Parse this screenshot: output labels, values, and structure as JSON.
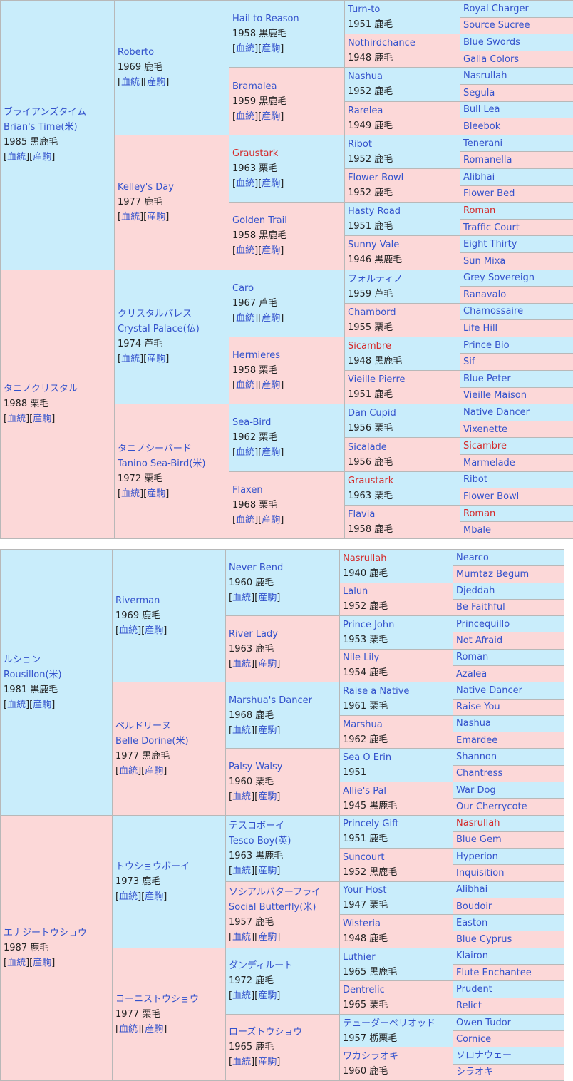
{
  "labels": {
    "open": "[",
    "close": "]",
    "pedigree": "血統",
    "offspring": "産駒"
  },
  "tables": [
    {
      "gen1": [
        {
          "name": "ブライアンズタイム",
          "name2": "Brian's Time(米)",
          "info": "1985 黒鹿毛"
        },
        {
          "name": "タニノクリスタル",
          "info": "1988 栗毛"
        }
      ],
      "gen2": [
        {
          "name": "Roberto",
          "info": "1969 鹿毛"
        },
        {
          "name": "Kelley's Day",
          "info": "1977 鹿毛"
        },
        {
          "name": "クリスタルパレス",
          "name2": "Crystal Palace(仏)",
          "info": "1974 芦毛"
        },
        {
          "name": "タニノシーバード",
          "name2": "Tanino Sea-Bird(米)",
          "info": "1972 栗毛"
        }
      ],
      "gen3": [
        {
          "name": "Hail to Reason",
          "info": "1958 黒鹿毛"
        },
        {
          "name": "Bramalea",
          "info": "1959 黒鹿毛"
        },
        {
          "name": "Graustark",
          "info": "1963 栗毛",
          "red": true
        },
        {
          "name": "Golden Trail",
          "info": "1958 黒鹿毛"
        },
        {
          "name": "Caro",
          "info": "1967 芦毛"
        },
        {
          "name": "Hermieres",
          "info": "1958 栗毛"
        },
        {
          "name": "Sea-Bird",
          "info": "1962 栗毛"
        },
        {
          "name": "Flaxen",
          "info": "1968 栗毛"
        }
      ],
      "gen4": [
        {
          "name": "Turn-to",
          "info": "1951 鹿毛"
        },
        {
          "name": "Nothirdchance",
          "info": "1948 鹿毛"
        },
        {
          "name": "Nashua",
          "info": "1952 鹿毛"
        },
        {
          "name": "Rarelea",
          "info": "1949 鹿毛"
        },
        {
          "name": "Ribot",
          "info": "1952 鹿毛"
        },
        {
          "name": "Flower Bowl",
          "info": "1952 鹿毛"
        },
        {
          "name": "Hasty Road",
          "info": "1951 鹿毛"
        },
        {
          "name": "Sunny Vale",
          "info": "1946 黒鹿毛"
        },
        {
          "name": "フォルティノ",
          "info": "1959 芦毛"
        },
        {
          "name": "Chambord",
          "info": "1955 栗毛"
        },
        {
          "name": "Sicambre",
          "info": "1948 黒鹿毛",
          "red": true
        },
        {
          "name": "Vieille Pierre",
          "info": "1951 鹿毛"
        },
        {
          "name": "Dan Cupid",
          "info": "1956 栗毛"
        },
        {
          "name": "Sicalade",
          "info": "1956 鹿毛"
        },
        {
          "name": "Graustark",
          "info": "1963 栗毛",
          "red": true
        },
        {
          "name": "Flavia",
          "info": "1958 鹿毛"
        }
      ],
      "gen5": [
        {
          "name": "Royal Charger"
        },
        {
          "name": "Source Sucree"
        },
        {
          "name": "Blue Swords"
        },
        {
          "name": "Galla Colors"
        },
        {
          "name": "Nasrullah"
        },
        {
          "name": "Segula"
        },
        {
          "name": "Bull Lea"
        },
        {
          "name": "Bleebok"
        },
        {
          "name": "Tenerani"
        },
        {
          "name": "Romanella"
        },
        {
          "name": "Alibhai"
        },
        {
          "name": "Flower Bed"
        },
        {
          "name": "Roman",
          "red": true
        },
        {
          "name": "Traffic Court"
        },
        {
          "name": "Eight Thirty"
        },
        {
          "name": "Sun Mixa"
        },
        {
          "name": "Grey Sovereign"
        },
        {
          "name": "Ranavalo"
        },
        {
          "name": "Chamossaire"
        },
        {
          "name": "Life Hill"
        },
        {
          "name": "Prince Bio"
        },
        {
          "name": "Sif"
        },
        {
          "name": "Blue Peter"
        },
        {
          "name": "Vieille Maison"
        },
        {
          "name": "Native Dancer"
        },
        {
          "name": "Vixenette"
        },
        {
          "name": "Sicambre",
          "red": true
        },
        {
          "name": "Marmelade"
        },
        {
          "name": "Ribot"
        },
        {
          "name": "Flower Bowl"
        },
        {
          "name": "Roman",
          "red": true
        },
        {
          "name": "Mbale"
        }
      ]
    },
    {
      "gen1": [
        {
          "name": "ルション",
          "name2": "Rousillon(米)",
          "info": "1981 黒鹿毛"
        },
        {
          "name": "エナジートウショウ",
          "info": "1987 鹿毛"
        }
      ],
      "gen2": [
        {
          "name": "Riverman",
          "info": "1969 鹿毛"
        },
        {
          "name": "ベルドリーヌ",
          "name2": "Belle Dorine(米)",
          "info": "1977 黒鹿毛"
        },
        {
          "name": "トウショウボーイ",
          "info": "1973 鹿毛"
        },
        {
          "name": "コーニストウショウ",
          "info": "1977 栗毛"
        }
      ],
      "gen3": [
        {
          "name": "Never Bend",
          "info": "1960 鹿毛"
        },
        {
          "name": "River Lady",
          "info": "1963 鹿毛"
        },
        {
          "name": "Marshua's Dancer",
          "info": "1968 鹿毛"
        },
        {
          "name": "Palsy Walsy",
          "info": "1960 栗毛"
        },
        {
          "name": "テスコボーイ",
          "name2": "Tesco Boy(英)",
          "info": "1963 黒鹿毛"
        },
        {
          "name": "ソシアルバターフライ",
          "name2": "Social Butterfly(米)",
          "info": "1957 鹿毛"
        },
        {
          "name": "ダンディルート",
          "info": "1972 鹿毛"
        },
        {
          "name": "ローズトウショウ",
          "info": "1965 鹿毛"
        }
      ],
      "gen4": [
        {
          "name": "Nasrullah",
          "info": "1940 鹿毛",
          "red": true
        },
        {
          "name": "Lalun",
          "info": "1952 鹿毛"
        },
        {
          "name": "Prince John",
          "info": "1953 栗毛"
        },
        {
          "name": "Nile Lily",
          "info": "1954 鹿毛"
        },
        {
          "name": "Raise a Native",
          "info": "1961 栗毛"
        },
        {
          "name": "Marshua",
          "info": "1962 鹿毛"
        },
        {
          "name": "Sea O Erin",
          "info": "1951"
        },
        {
          "name": "Allie's Pal",
          "info": "1945 黒鹿毛"
        },
        {
          "name": "Princely Gift",
          "info": "1951 鹿毛"
        },
        {
          "name": "Suncourt",
          "info": "1952 黒鹿毛"
        },
        {
          "name": "Your Host",
          "info": "1947 栗毛"
        },
        {
          "name": "Wisteria",
          "info": "1948 鹿毛"
        },
        {
          "name": "Luthier",
          "info": "1965 黒鹿毛"
        },
        {
          "name": "Dentrelic",
          "info": "1965 栗毛"
        },
        {
          "name": "テューダーペリオッド",
          "info": "1957 栃栗毛"
        },
        {
          "name": "ワカシラオキ",
          "info": "1960 鹿毛"
        }
      ],
      "gen5": [
        {
          "name": "Nearco"
        },
        {
          "name": "Mumtaz Begum"
        },
        {
          "name": "Djeddah"
        },
        {
          "name": "Be Faithful"
        },
        {
          "name": "Princequillo"
        },
        {
          "name": "Not Afraid"
        },
        {
          "name": "Roman"
        },
        {
          "name": "Azalea"
        },
        {
          "name": "Native Dancer"
        },
        {
          "name": "Raise You"
        },
        {
          "name": "Nashua"
        },
        {
          "name": "Emardee"
        },
        {
          "name": "Shannon"
        },
        {
          "name": "Chantress"
        },
        {
          "name": "War Dog"
        },
        {
          "name": "Our Cherrycote"
        },
        {
          "name": "Nasrullah",
          "red": true
        },
        {
          "name": "Blue Gem"
        },
        {
          "name": "Hyperion"
        },
        {
          "name": "Inquisition"
        },
        {
          "name": "Alibhai"
        },
        {
          "name": "Boudoir"
        },
        {
          "name": "Easton"
        },
        {
          "name": "Blue Cyprus"
        },
        {
          "name": "Klairon"
        },
        {
          "name": "Flute Enchantee"
        },
        {
          "name": "Prudent"
        },
        {
          "name": "Relict"
        },
        {
          "name": "Owen Tudor"
        },
        {
          "name": "Cornice"
        },
        {
          "name": "ソロナウェー"
        },
        {
          "name": "シラオキ"
        }
      ]
    }
  ]
}
